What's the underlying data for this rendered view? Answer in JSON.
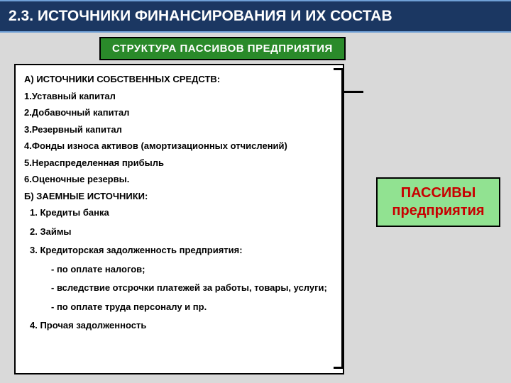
{
  "title": "2.3. ИСТОЧНИКИ ФИНАНСИРОВАНИЯ И ИХ СОСТАВ",
  "subtitle": "СТРУКТУРА  ПАССИВОВ  ПРЕДПРИЯТИЯ",
  "section_a": "А)  ИСТОЧНИКИ СОБСТВЕННЫХ СРЕДСТВ:",
  "a_items": [
    "1.Уставный капитал",
    "2.Добавочный капитал",
    "3.Резервный капитал",
    "4.Фонды износа активов (амортизационных отчислений)",
    "5.Нераспределенная прибыль",
    "6.Оценочные резервы."
  ],
  "section_b": "Б) ЗАЕМНЫЕ ИСТОЧНИКИ:",
  "b_items": [
    "1.     Кредиты банка",
    "2.     Займы",
    "3.     Кредиторская задолженность предприятия:"
  ],
  "b_sub": [
    "-      по оплате налогов;",
    "-      вследствие отсрочки платежей за работы, товары, услуги;",
    "-      по оплате труда персоналу и пр."
  ],
  "b_last": "4.     Прочая задолженность",
  "passiv_line1": "ПАССИВЫ",
  "passiv_line2": "предприятия",
  "colors": {
    "title_bg": "#1b3762",
    "subtitle_bg": "#2a8a2a",
    "passiv_bg": "#91e291",
    "passiv_text": "#c80000",
    "page_bg": "#d9d9d9"
  }
}
